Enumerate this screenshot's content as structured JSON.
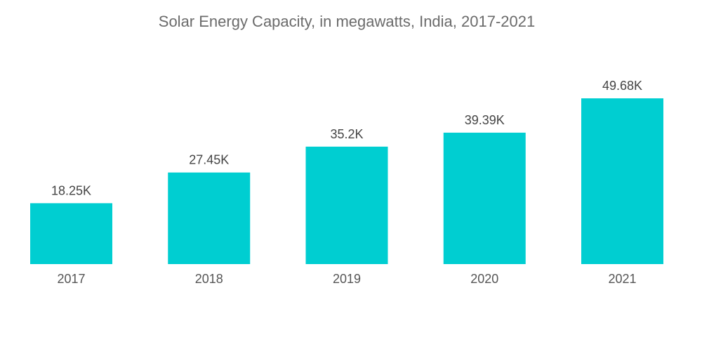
{
  "chart_data": {
    "type": "bar",
    "title": "Solar Energy Capacity, in megawatts, India, 2017-2021",
    "xlabel": "",
    "ylabel": "",
    "categories": [
      "2017",
      "2018",
      "2019",
      "2020",
      "2021"
    ],
    "values": [
      18250,
      27450,
      35200,
      39390,
      49680
    ],
    "data_labels": [
      "18.25K",
      "27.45K",
      "35.2K",
      "39.39K",
      "49.68K"
    ],
    "ylim": [
      0,
      49680
    ],
    "grid": false,
    "legend": "none",
    "bar_color": "#00ced1"
  }
}
